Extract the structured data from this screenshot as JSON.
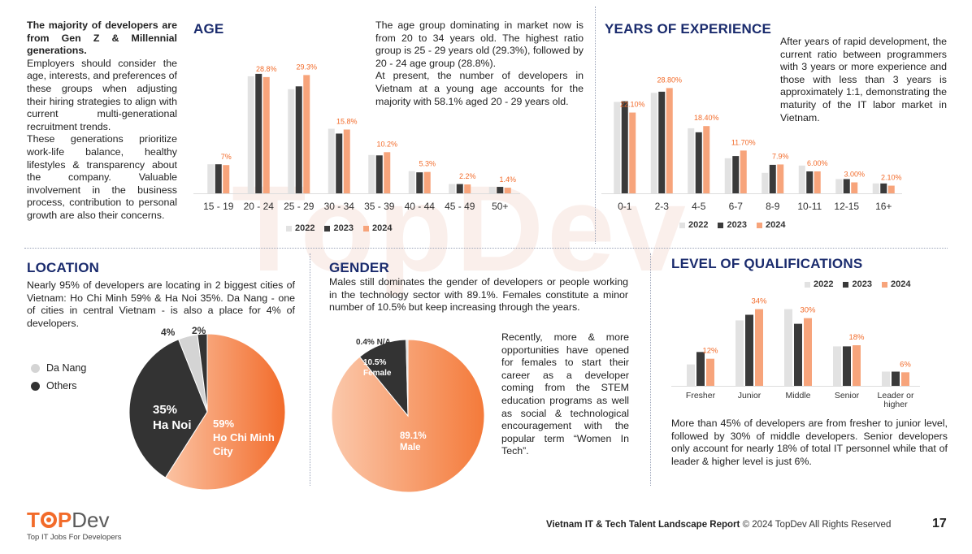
{
  "colors": {
    "y2022": "#e2e2e2",
    "y2023": "#3a3a3a",
    "y2024": "#f7a47b",
    "accent": "#f26b2a",
    "navy": "#1a2b6d",
    "slice_dark": "#333333",
    "slice_light": "#d4d4d4"
  },
  "watermark": "TopDev",
  "intro": {
    "bold": "The majority of developers are from Gen Z & Millennial generations.",
    "p1": "Employers should consider the age, interests, and preferences of these groups when adjusting their hiring strategies to align with current multi-generational recruitment trends.",
    "p2": "These generations prioritize work-life balance, healthy lifestyles & transparency about the company. Valuable involvement in the business process, contribution to personal growth are also their concerns."
  },
  "age": {
    "title": "AGE",
    "p1": "The age group dominating in market now is from 20 to 34 years old. The highest ratio group is 25 - 29 years old (29.3%), followed by 20 - 24 age group (28.8%).",
    "p2": "At present, the number of developers in Vietnam at a young age accounts for the majority with 58.1% aged 20 - 29 years old."
  },
  "experience": {
    "title": "YEARS OF EXPERIENCE",
    "p1": "After years of rapid development, the current ratio between programmers with 3 years or more experience and those with less than 3 years is approximately 1:1, demonstrating the maturity of the IT labor market in Vietnam."
  },
  "location": {
    "title": "LOCATION",
    "p1": "Nearly 95% of developers are locating in 2 biggest cities of Vietnam: Ho Chi Minh 59% & Ha Noi 35%.  Da Nang - one of cities in central Vietnam - is also a place for 4% of developers.",
    "legend": [
      "Da Nang",
      "Others"
    ],
    "hcm_pct": "59%",
    "hcm_name1": "Ho Chi Minh",
    "hcm_name2": "City",
    "hn_pct": "35%",
    "hn_name": "Ha Noi",
    "dn_label": "4%",
    "others_label": "2%"
  },
  "gender": {
    "title": "GENDER",
    "p1": "Males still dominates the gender of developers or people working in the technology sector with 89.1%. Females constitute a minor number of 10.5% but keep increasing through the years.",
    "p2": "Recently, more & more opportunities have opened for females to start their career as a developer coming from the STEM education programs as well as social & technological encouragement with the popular term “Women In Tech”.",
    "male_pct": "89.1%",
    "male_name": "Male",
    "female_pct": "10.5%",
    "female_name": "Female",
    "na_label": "0.4% N/A"
  },
  "qualifications": {
    "title": "LEVEL OF QUALIFICATIONS",
    "p1": "More than 45% of developers are from fresher to junior level, followed by 30% of middle developers. Senior developers only account for nearly 18% of total IT personnel while that of leader & higher level is just 6%."
  },
  "footer": {
    "logo_a": "T",
    "logo_b": "P",
    "logo_c": "Dev",
    "tagline": "Top IT Jobs For Developers",
    "report": "Vietnam IT & Tech Talent Landscape Report",
    "copyright": "© 2024 TopDev All Rights Reserved",
    "page": "17"
  },
  "chart_data": [
    {
      "type": "bar",
      "title": "AGE",
      "categories": [
        "15 - 19",
        "20 - 24",
        "25 - 29",
        "30 - 34",
        "35 - 39",
        "40 - 44",
        "45 - 49",
        "50+"
      ],
      "series": [
        {
          "name": "2022",
          "values": [
            7.2,
            29.0,
            25.8,
            16.0,
            9.5,
            5.5,
            2.3,
            1.6
          ]
        },
        {
          "name": "2023",
          "values": [
            7.2,
            29.6,
            26.5,
            14.8,
            9.4,
            5.2,
            2.3,
            1.6
          ]
        },
        {
          "name": "2024",
          "values": [
            7.0,
            28.8,
            29.3,
            15.8,
            10.2,
            5.3,
            2.2,
            1.4
          ]
        }
      ],
      "labels": [
        "7%",
        "28.8%",
        "29.3%",
        "15.8%",
        "10.2%",
        "5.3%",
        "2.2%",
        "1.4%"
      ],
      "legend": [
        "2022",
        "2023",
        "2024"
      ],
      "ylim": [
        0,
        33
      ]
    },
    {
      "type": "bar",
      "title": "YEARS OF EXPERIENCE",
      "categories": [
        "0-1",
        "2-3",
        "4-5",
        "6-7",
        "8-9",
        "10-11",
        "12-15",
        "16+"
      ],
      "series": [
        {
          "name": "2022",
          "values": [
            25.0,
            27.5,
            17.8,
            9.6,
            5.6,
            7.6,
            3.9,
            2.7
          ]
        },
        {
          "name": "2023",
          "values": [
            25.2,
            27.8,
            16.7,
            10.2,
            7.8,
            6.0,
            3.9,
            2.7
          ]
        },
        {
          "name": "2024",
          "values": [
            22.1,
            28.8,
            18.4,
            11.7,
            7.9,
            6.0,
            3.0,
            2.1
          ]
        }
      ],
      "labels": [
        "22.10%",
        "28.80%",
        "18.40%",
        "11.70%",
        "7.9%",
        "6.00%",
        "3.00%",
        "2.10%"
      ],
      "legend": [
        "2022",
        "2023",
        "2024"
      ],
      "ylim": [
        0,
        32
      ]
    },
    {
      "type": "pie",
      "title": "LOCATION",
      "slices": [
        {
          "name": "Ho Chi Minh City",
          "value": 59
        },
        {
          "name": "Ha Noi",
          "value": 35
        },
        {
          "name": "Da Nang",
          "value": 4
        },
        {
          "name": "Others",
          "value": 2
        }
      ]
    },
    {
      "type": "pie",
      "title": "GENDER",
      "slices": [
        {
          "name": "Male",
          "value": 89.1
        },
        {
          "name": "Female",
          "value": 10.5
        },
        {
          "name": "N/A",
          "value": 0.4
        }
      ]
    },
    {
      "type": "bar",
      "title": "LEVEL OF QUALIFICATIONS",
      "categories": [
        "Fresher",
        "Junior",
        "Middle",
        "Senior",
        "Leader or higher"
      ],
      "series": [
        {
          "name": "2022",
          "values": [
            9.5,
            29.0,
            34.0,
            17.5,
            6.3
          ]
        },
        {
          "name": "2023",
          "values": [
            15.0,
            31.5,
            27.5,
            17.5,
            6.3
          ]
        },
        {
          "name": "2024",
          "values": [
            12.0,
            34.0,
            30.0,
            18.0,
            6.0
          ]
        }
      ],
      "labels": [
        "12%",
        "34%",
        "30%",
        "18%",
        "6%"
      ],
      "legend": [
        "2022",
        "2023",
        "2024"
      ],
      "ylim": [
        0,
        36
      ]
    }
  ]
}
